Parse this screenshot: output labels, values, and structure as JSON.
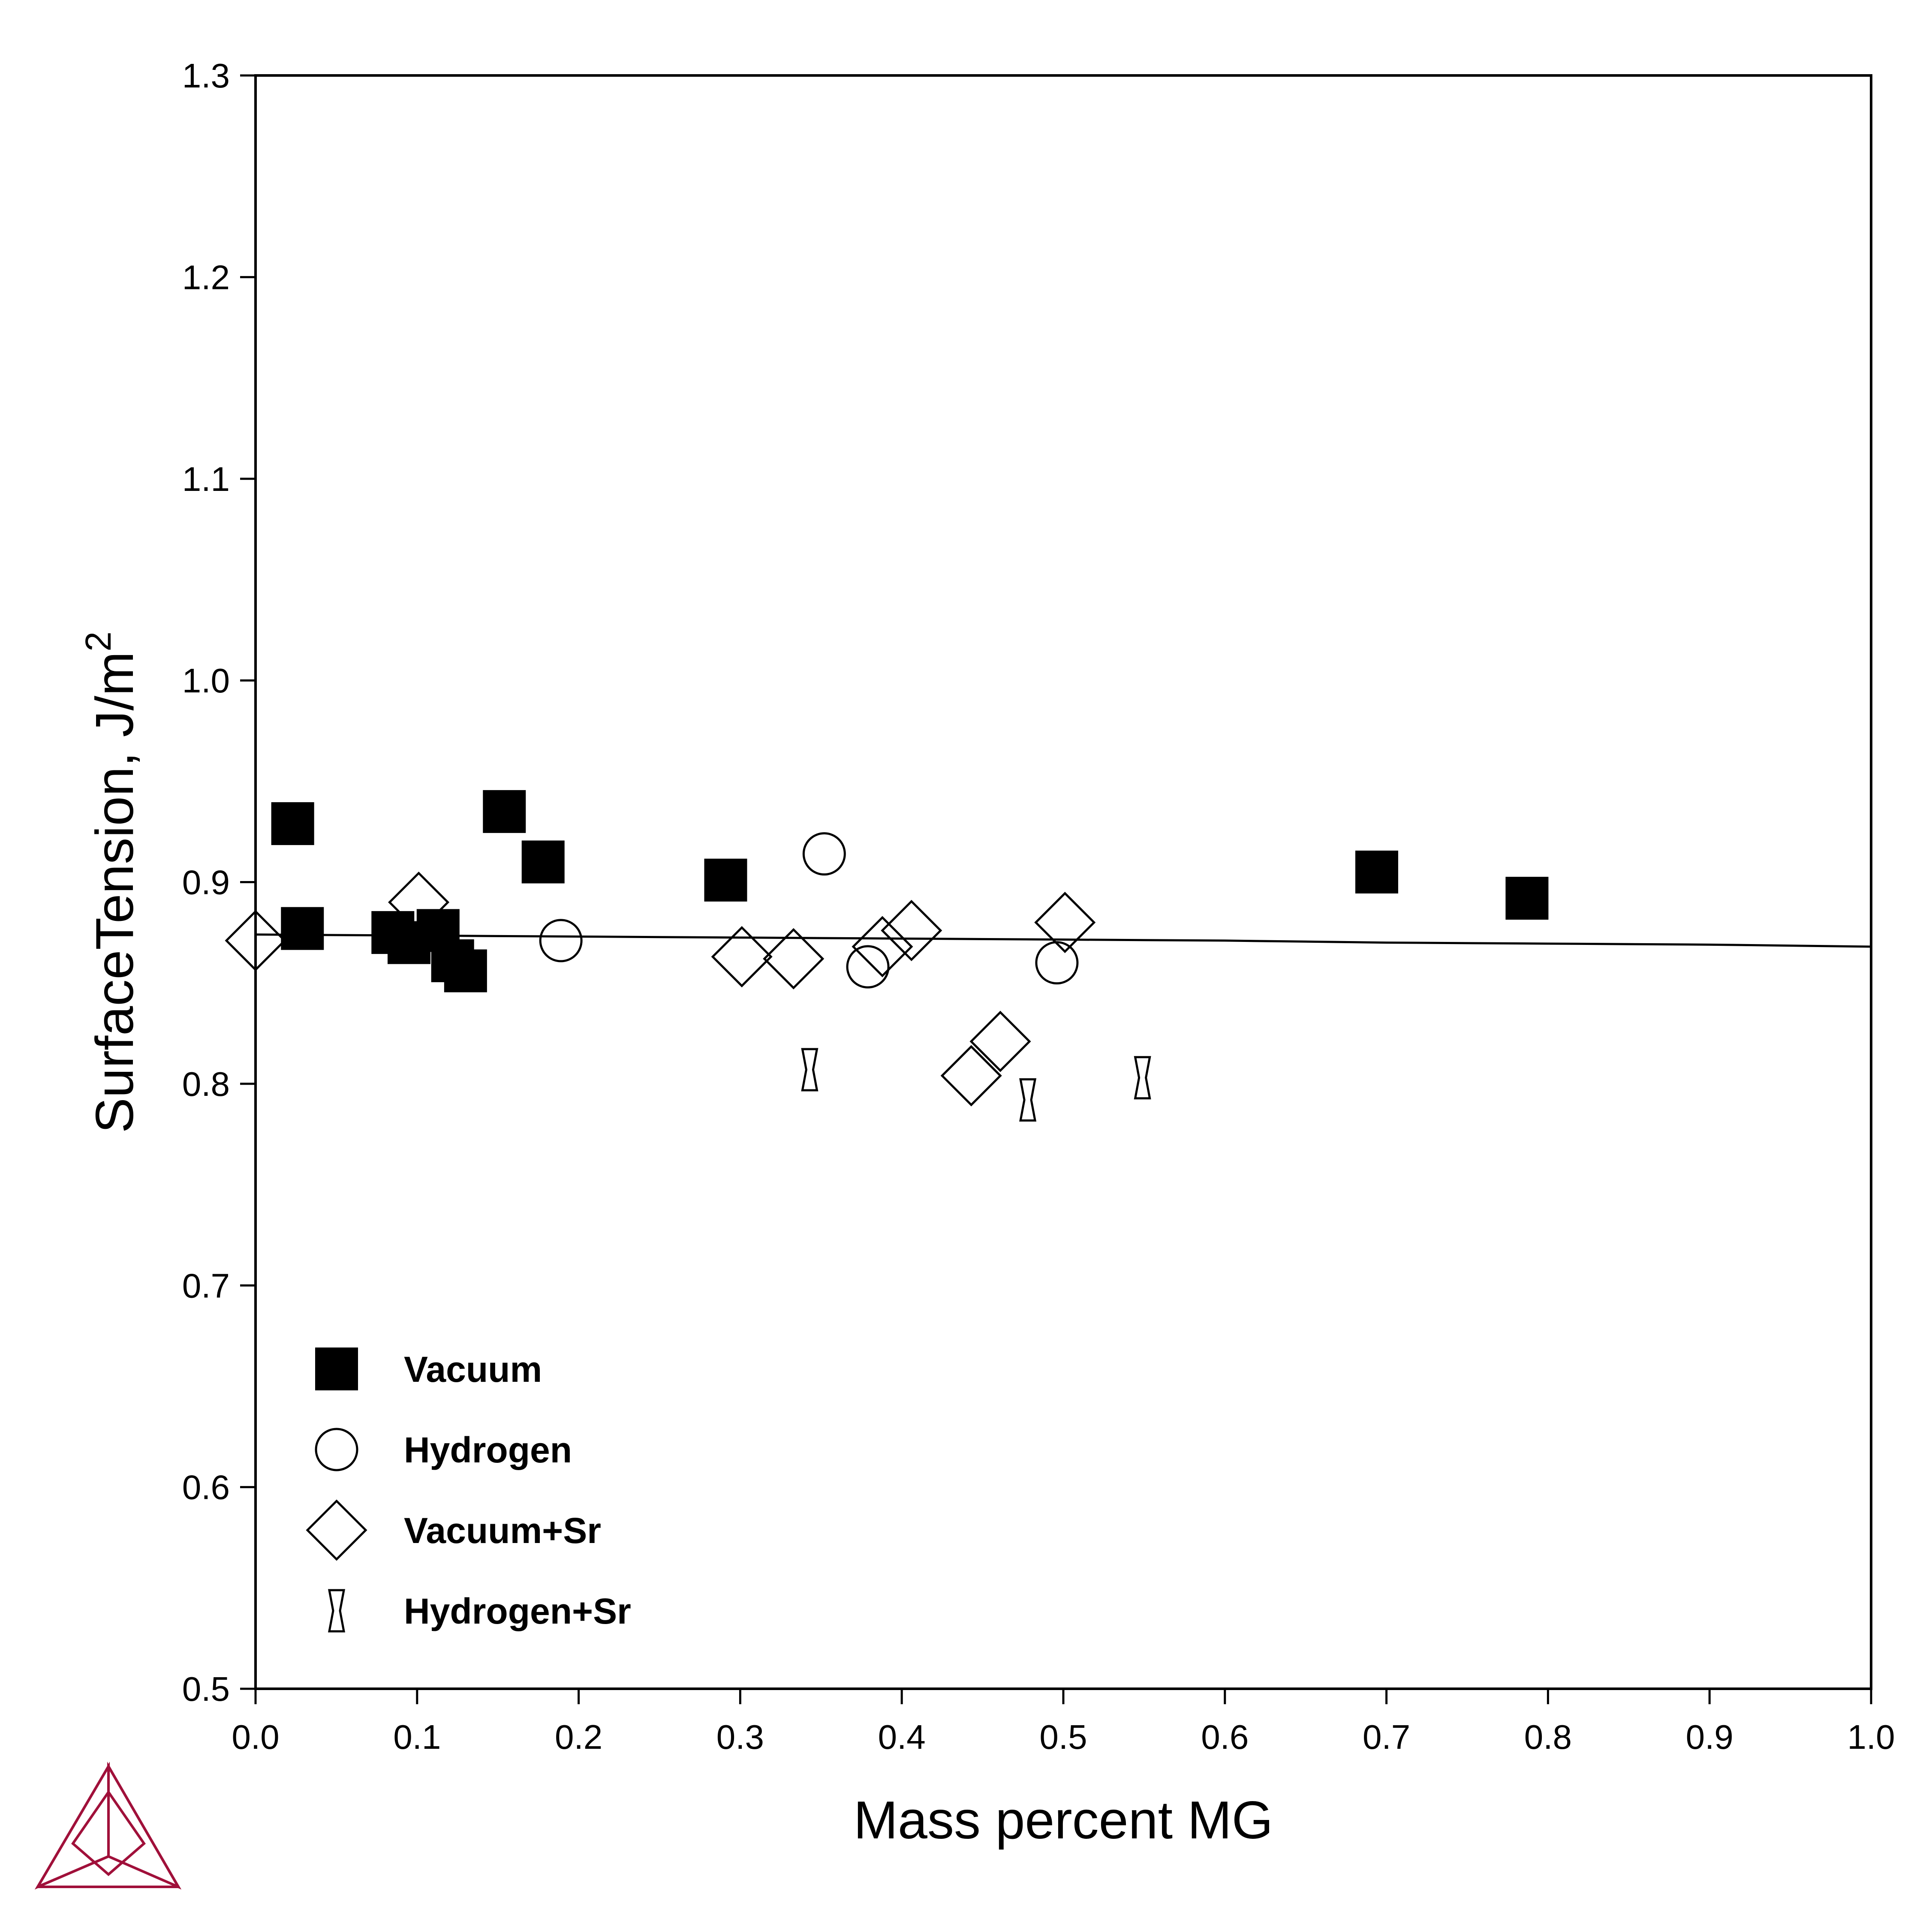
{
  "chart_data": {
    "type": "scatter",
    "title": "",
    "xlabel": "Mass percent MG",
    "ylabel": "SurfaceTension, J/m",
    "ylabel_superscript": "2",
    "xlim": [
      0.0,
      1.0
    ],
    "ylim": [
      0.5,
      1.3
    ],
    "x_ticks": [
      "0.0",
      "0.1",
      "0.2",
      "0.3",
      "0.4",
      "0.5",
      "0.6",
      "0.7",
      "0.8",
      "0.9",
      "1.0"
    ],
    "y_ticks": [
      "0.5",
      "0.6",
      "0.7",
      "0.8",
      "0.9",
      "1.0",
      "1.1",
      "1.2",
      "1.3"
    ],
    "grid": false,
    "legend_position": "bottom-left",
    "line": {
      "x": [
        0.0,
        0.1,
        0.2,
        0.3,
        0.4,
        0.5,
        0.6,
        0.7,
        0.8,
        0.9,
        1.0
      ],
      "y": [
        0.874,
        0.8735,
        0.873,
        0.8725,
        0.872,
        0.8715,
        0.871,
        0.87,
        0.8695,
        0.869,
        0.868
      ]
    },
    "series": [
      {
        "name": "Vacuum",
        "marker": "filled-square",
        "points": [
          [
            0.023,
            0.929
          ],
          [
            0.029,
            0.877
          ],
          [
            0.085,
            0.875
          ],
          [
            0.095,
            0.87
          ],
          [
            0.113,
            0.876
          ],
          [
            0.122,
            0.861
          ],
          [
            0.13,
            0.856
          ],
          [
            0.154,
            0.935
          ],
          [
            0.178,
            0.91
          ],
          [
            0.291,
            0.901
          ],
          [
            0.694,
            0.905
          ],
          [
            0.787,
            0.892
          ]
        ]
      },
      {
        "name": "Hydrogen",
        "marker": "open-circle",
        "points": [
          [
            0.189,
            0.871
          ],
          [
            0.352,
            0.914
          ],
          [
            0.379,
            0.858
          ],
          [
            0.496,
            0.86
          ]
        ]
      },
      {
        "name": "Vacuum+Sr",
        "marker": "open-diamond",
        "points": [
          [
            0.0,
            0.871
          ],
          [
            0.101,
            0.89
          ],
          [
            0.301,
            0.863
          ],
          [
            0.333,
            0.862
          ],
          [
            0.388,
            0.868
          ],
          [
            0.406,
            0.876
          ],
          [
            0.443,
            0.804
          ],
          [
            0.461,
            0.821
          ],
          [
            0.501,
            0.88
          ]
        ]
      },
      {
        "name": "Hydrogen+Sr",
        "marker": "hourglass",
        "points": [
          [
            0.343,
            0.807
          ],
          [
            0.478,
            0.792
          ],
          [
            0.549,
            0.803
          ]
        ]
      }
    ]
  },
  "logo": {
    "name": "thermo-calc-logo",
    "color": "#a0103a"
  },
  "colors": {
    "marker": "#000000",
    "axis": "#000000",
    "background": "#ffffff"
  }
}
